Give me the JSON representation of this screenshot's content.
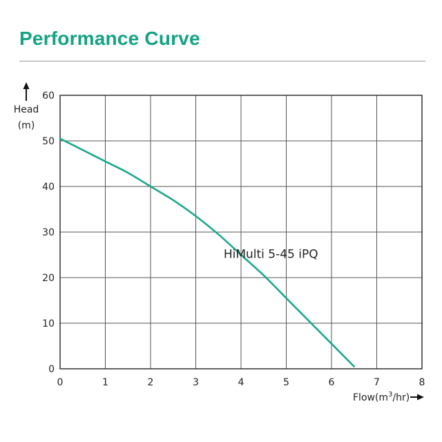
{
  "title": "Performance Curve",
  "colors": {
    "title": "#13a383",
    "curve": "#1aa88a",
    "grid": "#555555",
    "rule": "#9a9a9a"
  },
  "chart_data": {
    "type": "line",
    "title": "Performance Curve",
    "ylabel_line1": "Head",
    "ylabel_line2": "(m)",
    "xlabel": "Flow(m",
    "xlabel_sup": "3",
    "xlabel_end": "/hr)",
    "xlim": [
      0,
      8
    ],
    "ylim": [
      0,
      60
    ],
    "xticks": [
      0,
      1,
      2,
      3,
      4,
      5,
      6,
      7,
      8
    ],
    "yticks": [
      0,
      10,
      20,
      30,
      40,
      50,
      60
    ],
    "grid": true,
    "series": [
      {
        "name": "HiMulti 5-45 iPQ",
        "x": [
          0,
          0.5,
          1,
          1.5,
          2,
          2.5,
          3,
          3.5,
          4,
          4.5,
          5,
          5.5,
          6,
          6.5
        ],
        "y": [
          50.5,
          48.0,
          45.5,
          43.0,
          40.0,
          37.0,
          33.5,
          29.5,
          25.0,
          20.5,
          15.5,
          10.5,
          5.5,
          0.5
        ]
      }
    ]
  }
}
